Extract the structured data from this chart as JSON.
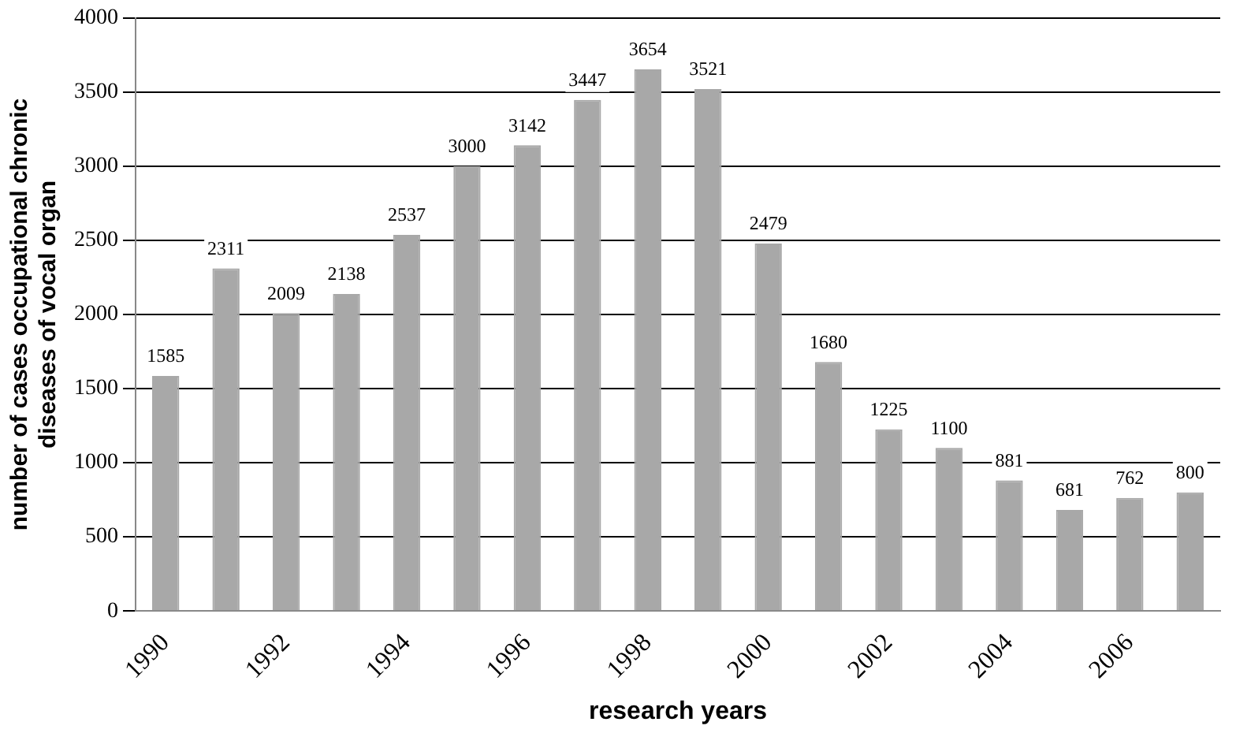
{
  "chart_data": {
    "type": "bar",
    "xlabel": "research years",
    "ylabel": "number of cases occupational chronic\ndiseases of vocal organ",
    "categories": [
      "1990",
      null,
      "1992",
      null,
      "1994",
      null,
      "1996",
      null,
      "1998",
      null,
      "2000",
      null,
      "2002",
      null,
      "2004",
      null,
      "2006",
      null
    ],
    "values": [
      1585,
      2311,
      2009,
      2138,
      2537,
      3000,
      3142,
      3447,
      3654,
      3521,
      2479,
      1680,
      1225,
      1100,
      881,
      681,
      762,
      800
    ],
    "color": "#a8a8a8",
    "ylim": [
      0,
      4000
    ],
    "yticks": [
      0,
      500,
      1000,
      1500,
      2000,
      2500,
      3000,
      3500,
      4000
    ],
    "grid": "y",
    "legend": false,
    "data_labels": true
  }
}
